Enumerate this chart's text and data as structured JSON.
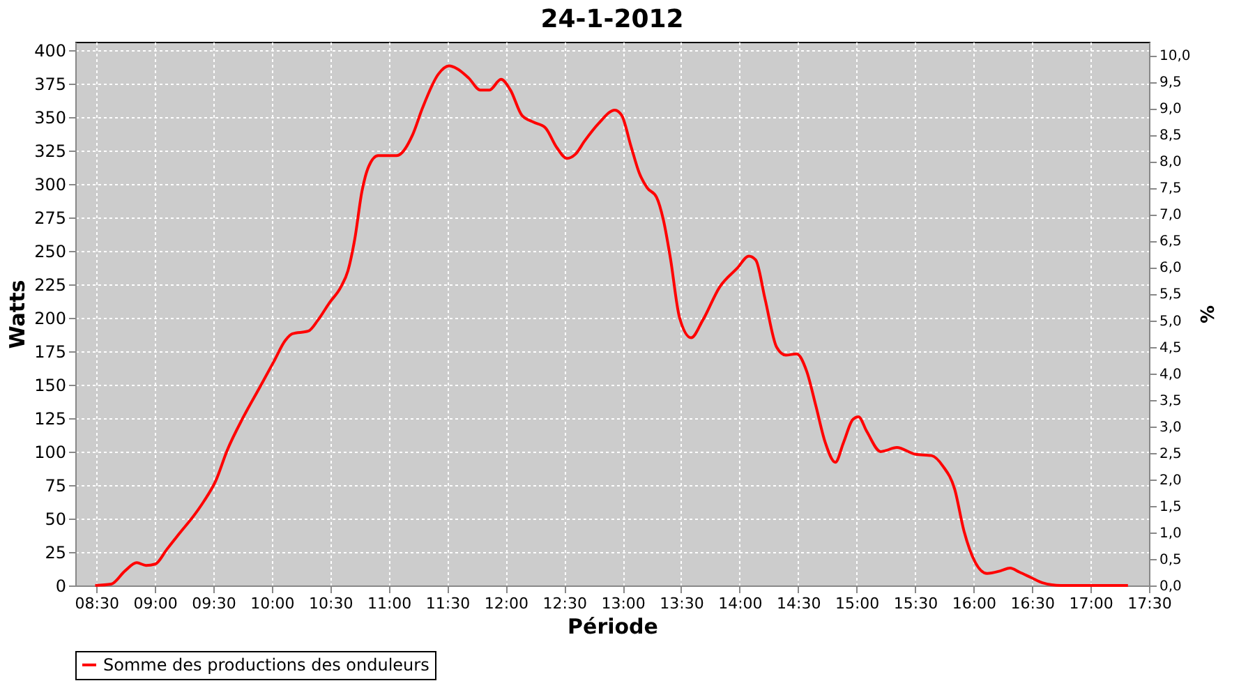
{
  "chart_data": {
    "type": "line",
    "title": "24-1-2012",
    "xlabel": "Période",
    "ylabel": "Watts",
    "y2label": "%",
    "xlim": [
      8.32,
      17.5
    ],
    "xticks": [
      {
        "value": 8.5,
        "label": "08:30"
      },
      {
        "value": 9.0,
        "label": "09:00"
      },
      {
        "value": 9.5,
        "label": "09:30"
      },
      {
        "value": 10.0,
        "label": "10:00"
      },
      {
        "value": 10.5,
        "label": "10:30"
      },
      {
        "value": 11.0,
        "label": "11:00"
      },
      {
        "value": 11.5,
        "label": "11:30"
      },
      {
        "value": 12.0,
        "label": "12:00"
      },
      {
        "value": 12.5,
        "label": "12:30"
      },
      {
        "value": 13.0,
        "label": "13:00"
      },
      {
        "value": 13.5,
        "label": "13:30"
      },
      {
        "value": 14.0,
        "label": "14:00"
      },
      {
        "value": 14.5,
        "label": "14:30"
      },
      {
        "value": 15.0,
        "label": "15:00"
      },
      {
        "value": 15.5,
        "label": "15:30"
      },
      {
        "value": 16.0,
        "label": "16:00"
      },
      {
        "value": 16.5,
        "label": "16:30"
      },
      {
        "value": 17.0,
        "label": "17:00"
      },
      {
        "value": 17.5,
        "label": "17:30"
      }
    ],
    "ylim": [
      0,
      406
    ],
    "yticks": [
      0,
      25,
      50,
      75,
      100,
      125,
      150,
      175,
      200,
      225,
      250,
      275,
      300,
      325,
      350,
      375,
      400
    ],
    "y2lim": [
      0,
      10.25
    ],
    "y2ticks": [
      {
        "value": 0,
        "label": "0,0"
      },
      {
        "value": 0.5,
        "label": "0,5"
      },
      {
        "value": 1,
        "label": "1,0"
      },
      {
        "value": 1.5,
        "label": "1,5"
      },
      {
        "value": 2,
        "label": "2,0"
      },
      {
        "value": 2.5,
        "label": "2,5"
      },
      {
        "value": 3,
        "label": "3,0"
      },
      {
        "value": 3.5,
        "label": "3,5"
      },
      {
        "value": 4,
        "label": "4,0"
      },
      {
        "value": 4.5,
        "label": "4,5"
      },
      {
        "value": 5,
        "label": "5,0"
      },
      {
        "value": 5.5,
        "label": "5,5"
      },
      {
        "value": 6,
        "label": "6,0"
      },
      {
        "value": 6.5,
        "label": "6,5"
      },
      {
        "value": 7,
        "label": "7,0"
      },
      {
        "value": 7.5,
        "label": "7,5"
      },
      {
        "value": 8,
        "label": "8,0"
      },
      {
        "value": 8.5,
        "label": "8,5"
      },
      {
        "value": 9,
        "label": "9,0"
      },
      {
        "value": 9.5,
        "label": "9,5"
      },
      {
        "value": 10,
        "label": "10,0"
      }
    ],
    "grid": true,
    "legend": "bottom",
    "marker": "none",
    "line_style": "solid",
    "series": [
      {
        "name": "Somme des productions des onduleurs",
        "color": "#ff0000",
        "x": [
          8.49,
          8.627,
          8.746,
          8.845,
          8.925,
          9.004,
          9.103,
          9.202,
          9.341,
          9.42,
          9.52,
          9.619,
          9.758,
          9.897,
          10.016,
          10.115,
          10.175,
          10.313,
          10.393,
          10.492,
          10.591,
          10.651,
          10.71,
          10.77,
          10.829,
          10.909,
          11.067,
          11.206,
          11.286,
          11.425,
          11.516,
          11.583,
          11.683,
          11.782,
          11.861,
          11.96,
          12.04,
          12.139,
          12.238,
          12.337,
          12.437,
          12.524,
          12.595,
          12.675,
          12.794,
          12.933,
          12.992,
          13.071,
          13.142,
          13.209,
          13.289,
          13.348,
          13.407,
          13.486,
          13.585,
          13.684,
          13.83,
          13.98,
          14.079,
          14.138,
          14.217,
          14.316,
          14.395,
          14.486,
          14.573,
          14.652,
          14.731,
          14.818,
          14.889,
          14.968,
          15.016,
          15.087,
          15.206,
          15.344,
          15.502,
          15.64,
          15.739,
          15.838,
          15.917,
          16.016,
          16.115,
          16.233,
          16.312,
          16.391,
          16.49,
          16.589,
          16.747,
          17.32
        ],
        "values": [
          0,
          1,
          11,
          17,
          15,
          16,
          27,
          38,
          53,
          63,
          78,
          101,
          126,
          148,
          167,
          183,
          188,
          190,
          198,
          211,
          223,
          235,
          259,
          294,
          313,
          321,
          321,
          337,
          356,
          382,
          388,
          386,
          379,
          370,
          370,
          378,
          370,
          351,
          346,
          342,
          327,
          319,
          322,
          332,
          345,
          355,
          351,
          328,
          308,
          297,
          290,
          273,
          245,
          200,
          185,
          198,
          223,
          237,
          246,
          243,
          214,
          178,
          172,
          173,
          160,
          134,
          107,
          92,
          107,
          124,
          126,
          115,
          100,
          103,
          98,
          97,
          89,
          72,
          41,
          17,
          9,
          11,
          13,
          10,
          6,
          2,
          0,
          0
        ]
      }
    ]
  }
}
